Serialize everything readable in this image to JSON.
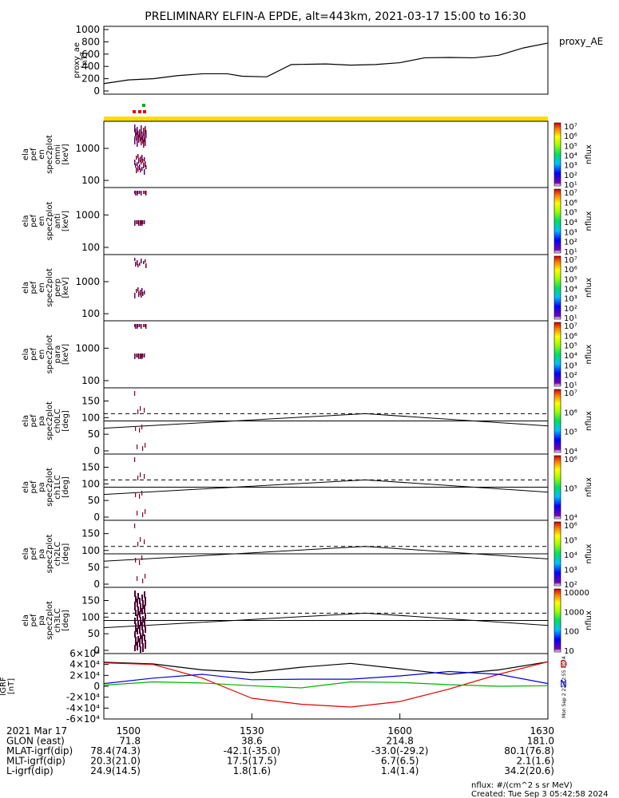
{
  "title": "PRELIMINARY ELFIN-A EPDE, alt=443km, 2021-03-17 15:00 to 16:30",
  "colors": {
    "black": "#000000",
    "red": "#e00000",
    "blue": "#0000dd",
    "green": "#00b000",
    "yellow": "#ffdd00",
    "purple": "#5a0078",
    "darkred": "#7a0030"
  },
  "chart_data": [
    {
      "type": "line",
      "panel": "proxy_ae",
      "ylabel_lines": [
        "proxy_ae",
        "[nT]"
      ],
      "legend": "proxy_AE",
      "ylim": [
        0,
        1000
      ],
      "yticks": [
        "0",
        "200",
        "400",
        "600",
        "800",
        "1000"
      ],
      "series": [
        {
          "x": [
            0,
            5,
            10,
            15,
            20,
            25,
            28,
            33,
            38,
            45,
            50,
            55,
            60,
            65,
            70,
            75,
            80,
            85,
            90
          ],
          "values": [
            120,
            180,
            200,
            250,
            280,
            280,
            240,
            230,
            430,
            440,
            420,
            430,
            460,
            540,
            545,
            540,
            580,
            700,
            780
          ]
        }
      ]
    },
    {
      "type": "heatmap",
      "panel": "omni",
      "ylabel_lines": [
        "ela",
        "pef",
        "en",
        "spec2plot",
        "omni",
        "[keV]"
      ],
      "yticks": [
        "100",
        "1000"
      ],
      "cbar_ticks": [
        "10¹",
        "10²",
        "10³",
        "10⁴",
        "10⁵",
        "10⁶",
        "10⁷"
      ],
      "cbar_label": "nflux"
    },
    {
      "type": "heatmap",
      "panel": "anti",
      "ylabel_lines": [
        "ela",
        "pef",
        "en",
        "spec2plot",
        "anti",
        "[keV]"
      ],
      "yticks": [
        "100",
        "1000"
      ],
      "cbar_ticks": [
        "10¹",
        "10²",
        "10³",
        "10⁴",
        "10⁵",
        "10⁶",
        "10⁷"
      ],
      "cbar_label": "nflux"
    },
    {
      "type": "heatmap",
      "panel": "perp",
      "ylabel_lines": [
        "ela",
        "pef",
        "en",
        "spec2plot",
        "perp",
        "[keV]"
      ],
      "yticks": [
        "100",
        "1000"
      ],
      "cbar_ticks": [
        "10¹",
        "10²",
        "10³",
        "10⁴",
        "10⁵",
        "10⁶",
        "10⁷"
      ],
      "cbar_label": "nflux"
    },
    {
      "type": "heatmap",
      "panel": "para",
      "ylabel_lines": [
        "ela",
        "pef",
        "en",
        "spec2plot",
        "para",
        "[keV]"
      ],
      "yticks": [
        "100",
        "1000"
      ],
      "cbar_ticks": [
        "10¹",
        "10²",
        "10³",
        "10⁴",
        "10⁵",
        "10⁶",
        "10⁷"
      ],
      "cbar_label": "nflux"
    },
    {
      "type": "heatmap",
      "panel": "ch0LC",
      "ylabel_lines": [
        "ela",
        "pef",
        "pa",
        "spec2plot",
        "ch0LC",
        "[deg]"
      ],
      "ylim": [
        0,
        180
      ],
      "yticks": [
        "0",
        "50",
        "100",
        "150"
      ],
      "cbar_ticks": [
        "10⁴",
        "10⁵",
        "10⁶",
        "10⁷"
      ],
      "cbar_label": "nflux",
      "lc_lines": {
        "x": [
          0,
          53,
          90
        ],
        "solid": [
          68,
          112,
          75
        ],
        "dashed": [
          112,
          112,
          112
        ]
      }
    },
    {
      "type": "heatmap",
      "panel": "ch1LC",
      "ylabel_lines": [
        "ela",
        "pef",
        "pa",
        "spec2plot",
        "ch1LC",
        "[deg]"
      ],
      "ylim": [
        0,
        180
      ],
      "yticks": [
        "0",
        "50",
        "100",
        "150"
      ],
      "cbar_ticks": [
        "10⁴",
        "10⁵",
        "10⁶"
      ],
      "cbar_label": "nflux",
      "lc_lines": {
        "x": [
          0,
          53,
          90
        ],
        "solid": [
          68,
          112,
          75
        ],
        "dashed": [
          112,
          112,
          112
        ]
      }
    },
    {
      "type": "heatmap",
      "panel": "ch2LC",
      "ylabel_lines": [
        "ela",
        "pef",
        "pa",
        "spec2plot",
        "ch2LC",
        "[deg]"
      ],
      "ylim": [
        0,
        180
      ],
      "yticks": [
        "0",
        "50",
        "100",
        "150"
      ],
      "cbar_ticks": [
        "10²",
        "10³",
        "10⁴",
        "10⁵",
        "10⁶"
      ],
      "cbar_label": "nflux",
      "lc_lines": {
        "x": [
          0,
          53,
          90
        ],
        "solid": [
          68,
          112,
          75
        ],
        "dashed": [
          112,
          112,
          112
        ]
      }
    },
    {
      "type": "heatmap",
      "panel": "ch3LC",
      "ylabel_lines": [
        "ela",
        "pef",
        "pa",
        "spec2plot",
        "ch3LC",
        "[deg]"
      ],
      "ylim": [
        0,
        180
      ],
      "yticks": [
        "0",
        "50",
        "100",
        "150"
      ],
      "cbar_ticks": [
        "10",
        "100",
        "1000",
        "10000"
      ],
      "cbar_label": "nflux",
      "lc_lines": {
        "x": [
          0,
          53,
          90
        ],
        "solid": [
          68,
          112,
          75
        ],
        "dashed": [
          112,
          112,
          112
        ]
      }
    },
    {
      "type": "line",
      "panel": "IGRF",
      "ylabel_lines": [
        "IGRF",
        "[nT]"
      ],
      "ylim": [
        -60000,
        60000
      ],
      "yticks": [
        "-6×10⁴",
        "-4×10⁴",
        "-2×10⁴",
        "0",
        "2×10⁴",
        "4×10⁴",
        "6×10⁴"
      ],
      "legend": [
        "D",
        "N"
      ],
      "series": [
        {
          "x": [
            0,
            10,
            20,
            30,
            40,
            50,
            60,
            70,
            80,
            90
          ],
          "values": [
            44000,
            41000,
            30000,
            25000,
            35000,
            42000,
            32000,
            22000,
            30000,
            45000
          ]
        },
        {
          "x": [
            0,
            10,
            20,
            30,
            40,
            50,
            60,
            70,
            80,
            90
          ],
          "values": [
            43000,
            40000,
            15000,
            -22000,
            -33000,
            -38000,
            -28000,
            -5000,
            22000,
            45000
          ]
        },
        {
          "x": [
            0,
            10,
            20,
            30,
            40,
            50,
            60,
            70,
            80,
            90
          ],
          "values": [
            5000,
            15000,
            22000,
            12000,
            13000,
            13000,
            19000,
            27000,
            22000,
            5000
          ]
        },
        {
          "x": [
            0,
            10,
            20,
            30,
            40,
            50,
            60,
            70,
            80,
            90
          ],
          "values": [
            2000,
            8000,
            6000,
            1000,
            -3000,
            8000,
            7000,
            3000,
            0,
            1000
          ]
        }
      ]
    }
  ],
  "xaxis": {
    "ticks": [
      "1500",
      "1530",
      "1600",
      "1630"
    ],
    "rows": [
      {
        "label": "2021 Mar 17",
        "values": [
          "1500",
          "1530",
          "1600",
          "1630"
        ]
      },
      {
        "label": "GLON (east)",
        "values": [
          "71.8",
          "38.6",
          "214.8",
          "181.0"
        ]
      },
      {
        "label": "MLAT-igrf(dip)",
        "values": [
          "78.4(74.3)",
          "-42.1(-35.0)",
          "-33.0(-29.2)",
          "80.1(76.8)"
        ]
      },
      {
        "label": "MLT-igrf(dip)",
        "values": [
          "20.3(21.0)",
          "17.5(17.5)",
          "6.7(6.5)",
          "2.1(1.6)"
        ]
      },
      {
        "label": "L-igrf(dip)",
        "values": [
          "24.9(14.5)",
          "1.8(1.6)",
          "1.4(1.4)",
          "34.2(20.6)"
        ]
      }
    ]
  },
  "footer": {
    "units": "nflux: #/(cm^2 s sr MeV)",
    "created": "Created: Tue Sep  3 05:42:58 2024",
    "side_stamp": "Mon Sep  2 22:42:55 2024"
  }
}
